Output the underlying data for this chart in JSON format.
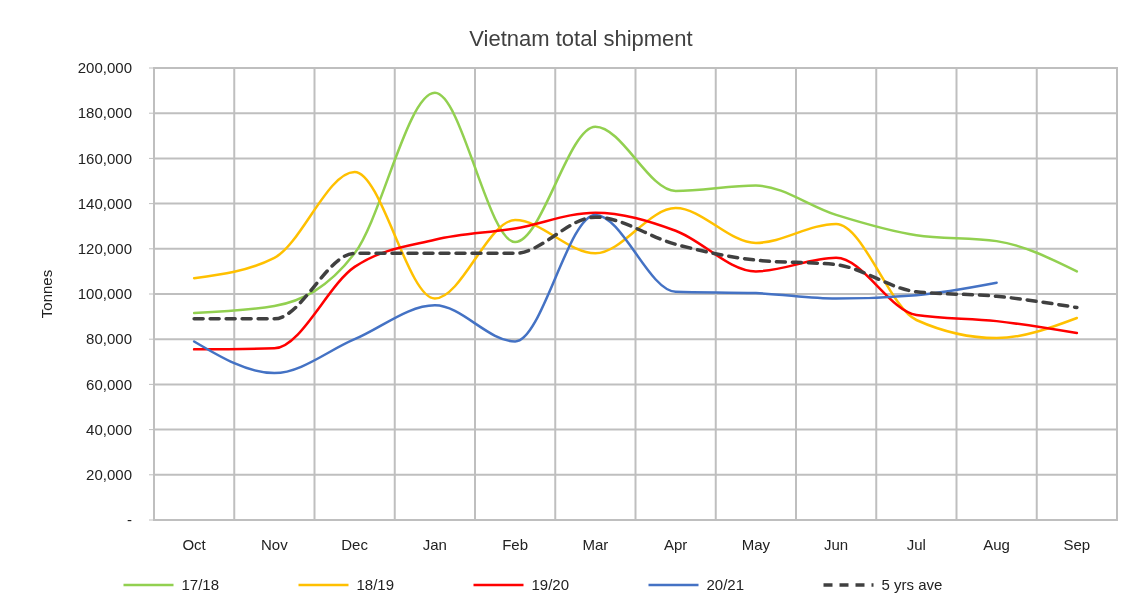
{
  "chart_data": {
    "type": "line",
    "title": "Vietnam total shipment",
    "ylabel": "Tonnes",
    "categories": [
      "Oct",
      "Nov",
      "Dec",
      "Jan",
      "Feb",
      "Mar",
      "Apr",
      "May",
      "Jun",
      "Jul",
      "Aug",
      "Sep"
    ],
    "ylim": [
      0,
      200000
    ],
    "yticks": [
      {
        "value": 0,
        "label": "-"
      },
      {
        "value": 20000,
        "label": "20,000"
      },
      {
        "value": 40000,
        "label": "40,000"
      },
      {
        "value": 60000,
        "label": "60,000"
      },
      {
        "value": 80000,
        "label": "80,000"
      },
      {
        "value": 100000,
        "label": "100,000"
      },
      {
        "value": 120000,
        "label": "120,000"
      },
      {
        "value": 140000,
        "label": "140,000"
      },
      {
        "value": 160000,
        "label": "160,000"
      },
      {
        "value": 180000,
        "label": "180,000"
      },
      {
        "value": 200000,
        "label": "200,000"
      }
    ],
    "grid": true,
    "legend": "bottom",
    "marker": "none",
    "series": [
      {
        "name": "17/18",
        "color": "#92d050",
        "values": [
          91600,
          94700,
          118000,
          189000,
          123000,
          174000,
          145600,
          148000,
          135000,
          126000,
          123400,
          110000
        ]
      },
      {
        "name": "18/19",
        "color": "#ffc000",
        "values": [
          107000,
          116000,
          154000,
          98000,
          132700,
          118000,
          138000,
          122600,
          131000,
          88500,
          80500,
          89400
        ]
      },
      {
        "name": "19/20",
        "color": "#ff0000",
        "values": [
          75500,
          76000,
          112000,
          124000,
          129000,
          136000,
          128000,
          110000,
          116000,
          90700,
          88000,
          82700
        ]
      },
      {
        "name": "20/21",
        "color": "#4472c4",
        "values": [
          79000,
          65000,
          80000,
          95000,
          79000,
          135000,
          101000,
          100400,
          98000,
          99500,
          105000,
          null
        ]
      },
      {
        "name": "5 yrs ave",
        "color": "#404040",
        "line_style": "dashed",
        "values": [
          89000,
          89000,
          118000,
          118000,
          118000,
          134000,
          122000,
          115000,
          113000,
          101000,
          99000,
          94000
        ]
      }
    ]
  }
}
